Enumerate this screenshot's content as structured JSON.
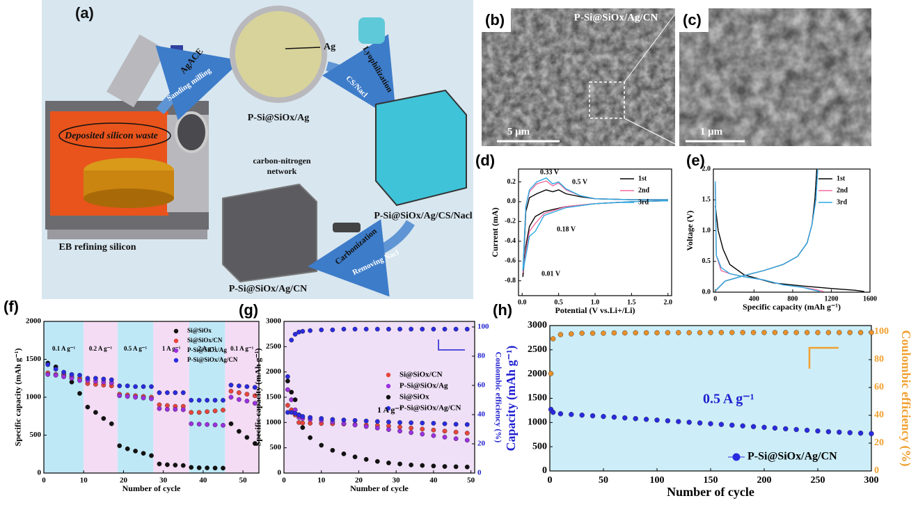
{
  "figure": {
    "labels": [
      "(a)",
      "(b)",
      "(c)",
      "(d)",
      "(e)",
      "(f)",
      "(g)",
      "(h)"
    ],
    "a": {
      "agace": "AgACE",
      "sanding": "Sanding milling",
      "ag": "Ag",
      "psi_ag": "P-Si@SiOx/Ag",
      "lyophilization": "Lyophilization",
      "cs_nacl": "CS/Nacl",
      "deposited": "Deposited silicon waste",
      "cn_network_1": "carbon-nitrogen",
      "cn_network_2": "network",
      "psi_cs": "P-Si@SiOx/Ag/CS/Nacl",
      "carbonization": "Carbonization",
      "removing": "Removing Nacl",
      "eb": "EB refining silicon",
      "psi_cn": "P-Si@SiOx/Ag/CN"
    },
    "b": {
      "title": "P-Si@SiOx/Ag/CN",
      "scale": "5 μm"
    },
    "c": {
      "scale": "1 μm"
    }
  },
  "chart_data": [
    {
      "type": "line",
      "xlabel": "Potential (V vs.Li+/Li)",
      "ylabel": "Current (mA)",
      "xlim": [
        -0.05,
        2.05
      ],
      "ylim": [
        -0.95,
        0.33
      ],
      "xticks": [
        {
          "value": 0,
          "label": "0.0"
        },
        0.5,
        {
          "value": 1,
          "label": "1.0"
        },
        1.5,
        {
          "value": 2,
          "label": "2.0"
        }
      ],
      "yticks": [
        -0.8,
        -0.6,
        -0.4,
        -0.2,
        {
          "value": 0,
          "label": "0.0"
        },
        0.2
      ],
      "legend": "upper right",
      "background": "#ffffff",
      "x": [
        2.0,
        1.5,
        1.0,
        0.6,
        0.3,
        0.18,
        0.1,
        0.05,
        0.01,
        0.05,
        0.1,
        0.2,
        0.33,
        0.42,
        0.5,
        0.6,
        0.8,
        1.0,
        1.5,
        2.0
      ],
      "series": [
        {
          "name": "1st",
          "color": "#000000",
          "values": [
            0.01,
            0.0,
            -0.02,
            -0.05,
            -0.1,
            -0.15,
            -0.25,
            -0.45,
            -0.76,
            -0.1,
            0.04,
            0.08,
            0.12,
            0.1,
            0.12,
            0.08,
            0.05,
            0.03,
            0.02,
            0.02
          ]
        },
        {
          "name": "2nd",
          "color": "#f06ca0",
          "values": [
            0.01,
            0.0,
            -0.02,
            -0.05,
            -0.12,
            -0.22,
            -0.3,
            -0.5,
            -0.72,
            -0.05,
            0.1,
            0.18,
            0.21,
            0.16,
            0.19,
            0.12,
            0.06,
            0.03,
            0.02,
            0.02
          ]
        },
        {
          "name": "3rd",
          "color": "#29a8e0",
          "values": [
            0.01,
            0.0,
            -0.02,
            -0.06,
            -0.14,
            -0.3,
            -0.35,
            -0.55,
            -0.7,
            -0.05,
            0.12,
            0.2,
            0.24,
            0.18,
            0.2,
            0.13,
            0.06,
            0.03,
            0.02,
            0.02
          ]
        }
      ],
      "annotations": [
        "0.33 V",
        "0.5 V",
        "0.18 V",
        "0.01 V"
      ]
    },
    {
      "type": "line",
      "xlabel": "Specific capacity (mAh g⁻¹)",
      "ylabel": "Voltage (V)",
      "xlim": [
        -20,
        1600
      ],
      "ylim": [
        0,
        2.0
      ],
      "xticks": [
        0,
        400,
        800,
        1200,
        1600
      ],
      "yticks": [
        {
          "value": 0,
          "label": "0.0"
        },
        0.5,
        {
          "value": 1,
          "label": "1.0"
        },
        1.5,
        {
          "value": 2,
          "label": "2.0"
        }
      ],
      "legend": "upper right",
      "background": "#ffffff",
      "series": [
        {
          "name": "1st",
          "color": "#000000",
          "x": [
            0,
            30,
            80,
            150,
            300,
            600,
            900,
            1200,
            1450,
            1540,
            null,
            0,
            100,
            300,
            500,
            700,
            850,
            950,
            1000,
            1030,
            1050
          ],
          "values": [
            1.4,
            1.0,
            0.7,
            0.45,
            0.28,
            0.15,
            0.1,
            0.06,
            0.03,
            0.01,
            null,
            0.02,
            0.18,
            0.27,
            0.35,
            0.45,
            0.58,
            0.8,
            1.1,
            1.5,
            2.0
          ]
        },
        {
          "name": "2nd",
          "color": "#f06ca0",
          "x": [
            0,
            10,
            60,
            150,
            300,
            500,
            700,
            900,
            1050,
            1120,
            null,
            0,
            100,
            300,
            500,
            700,
            850,
            950,
            1000,
            1040,
            1060
          ],
          "values": [
            1.75,
            0.6,
            0.35,
            0.3,
            0.25,
            0.2,
            0.12,
            0.08,
            0.04,
            0.01,
            null,
            0.02,
            0.18,
            0.27,
            0.35,
            0.45,
            0.58,
            0.8,
            1.1,
            1.5,
            2.0
          ]
        },
        {
          "name": "3rd",
          "color": "#29a8e0",
          "x": [
            0,
            10,
            60,
            150,
            300,
            500,
            700,
            900,
            1000,
            1080,
            null,
            0,
            100,
            300,
            500,
            700,
            850,
            950,
            1000,
            1040,
            1060
          ],
          "values": [
            1.8,
            0.6,
            0.4,
            0.3,
            0.25,
            0.2,
            0.12,
            0.08,
            0.04,
            0.01,
            null,
            0.02,
            0.18,
            0.27,
            0.35,
            0.45,
            0.58,
            0.8,
            1.1,
            1.5,
            2.0
          ]
        }
      ]
    },
    {
      "type": "line",
      "markers": true,
      "xlabel": "Number of cycle",
      "ylabel": "Specific capacity (mAh g⁻¹)",
      "xlim": [
        0,
        54
      ],
      "ylim": [
        0,
        2000
      ],
      "xticks": [
        0,
        10,
        20,
        30,
        40,
        50
      ],
      "yticks": [
        0,
        500,
        1000,
        1500,
        2000
      ],
      "legend": "upper right",
      "background": "#ffffff",
      "regions": [
        {
          "range": [
            0,
            10
          ],
          "label": "0.1 A g⁻¹",
          "color": "#bfe8f7"
        },
        {
          "range": [
            10,
            18.5
          ],
          "label": "0.2 A g⁻¹",
          "color": "#f4dcf4"
        },
        {
          "range": [
            18.5,
            27.5
          ],
          "label": "0.5 A g⁻¹",
          "color": "#bfe8f7"
        },
        {
          "range": [
            27.5,
            36.5
          ],
          "label": "1 A g⁻¹",
          "color": "#f4dcf4"
        },
        {
          "range": [
            36.5,
            45.5
          ],
          "label": "2 A g⁻¹",
          "color": "#bfe8f7"
        },
        {
          "range": [
            45.5,
            54
          ],
          "label": "0.1 A g⁻¹",
          "color": "#f4dcf4"
        }
      ],
      "x": [
        1,
        3,
        5,
        7,
        9,
        11,
        13,
        15,
        17,
        19,
        21,
        23,
        25,
        27,
        29,
        31,
        33,
        35,
        37,
        39,
        41,
        43,
        45,
        47,
        49,
        51,
        53
      ],
      "series": [
        {
          "name": "Si@SiOx",
          "color": "#111111",
          "values": [
            1450,
            1400,
            1300,
            1200,
            1050,
            870,
            800,
            720,
            650,
            360,
            320,
            290,
            260,
            230,
            120,
            110,
            105,
            100,
            75,
            70,
            68,
            66,
            65,
            650,
            550,
            470,
            390
          ]
        },
        {
          "name": "Si@SiOx/CN",
          "color": "#e8453c",
          "values": [
            1320,
            1300,
            1290,
            1270,
            1250,
            1180,
            1170,
            1160,
            1150,
            1040,
            1030,
            1020,
            1010,
            1000,
            900,
            890,
            880,
            880,
            800,
            800,
            810,
            820,
            830,
            1080,
            1060,
            1040,
            1020
          ]
        },
        {
          "name": "P-Si@SiOx/Ag",
          "color": "#9b30e0",
          "values": [
            1300,
            1290,
            1270,
            1250,
            1220,
            1220,
            1210,
            1200,
            1190,
            1020,
            1010,
            1000,
            990,
            980,
            850,
            840,
            840,
            835,
            650,
            645,
            640,
            635,
            630,
            1000,
            970,
            950,
            920
          ]
        },
        {
          "name": "P-Si@SiOx/Ag/CN",
          "color": "#2a2ae0",
          "values": [
            1430,
            1370,
            1330,
            1300,
            1290,
            1250,
            1250,
            1240,
            1230,
            1150,
            1150,
            1140,
            1140,
            1140,
            1060,
            1060,
            1060,
            1060,
            960,
            960,
            960,
            960,
            960,
            1160,
            1150,
            1140,
            1130
          ]
        }
      ]
    },
    {
      "type": "line",
      "markers": true,
      "xlabel": "Number of cycle",
      "ylabel": "Specific capacity (mAh g⁻¹)",
      "y2label": "Coulombic efficiency (%)",
      "y2label_color": "#1f1fd0",
      "xlim": [
        0,
        51
      ],
      "ylim": [
        0,
        3000
      ],
      "y2lim": [
        0,
        103.8
      ],
      "xticks": [
        0,
        10,
        20,
        30,
        40,
        50
      ],
      "yticks": [
        0,
        500,
        1000,
        1500,
        2000,
        2500,
        3000
      ],
      "y2ticks": [
        0,
        20,
        40,
        60,
        80,
        100
      ],
      "legend": "center right",
      "background": "#efe0f7",
      "x": [
        1,
        2,
        3,
        4,
        5,
        7,
        10,
        13,
        16,
        19,
        22,
        25,
        28,
        31,
        34,
        37,
        40,
        43,
        46,
        49
      ],
      "series": [
        {
          "name": "Si@SiOx/CN",
          "color": "#e8453c",
          "values": [
            1340,
            1250,
            1150,
            1000,
            990,
            985,
            980,
            975,
            970,
            960,
            950,
            940,
            930,
            910,
            890,
            870,
            850,
            830,
            810,
            790
          ]
        },
        {
          "name": "P-Si@SiOx/Ag",
          "color": "#9b30e0",
          "values": [
            1650,
            1450,
            1250,
            1100,
            1080,
            1060,
            1040,
            1010,
            980,
            950,
            920,
            890,
            860,
            830,
            800,
            770,
            740,
            710,
            680,
            650
          ]
        },
        {
          "name": "Si@SiOx",
          "color": "#111111",
          "values": [
            1820,
            1600,
            1450,
            1150,
            900,
            700,
            550,
            450,
            380,
            320,
            270,
            230,
            200,
            180,
            160,
            150,
            140,
            130,
            125,
            120
          ]
        },
        {
          "name": "P-Si@SiOx/Ag/CN",
          "color": "#2a2ae0",
          "values": [
            1200,
            1200,
            1180,
            1150,
            1120,
            1100,
            1080,
            1060,
            1050,
            1040,
            1030,
            1020,
            1010,
            1000,
            995,
            990,
            985,
            975,
            965,
            960
          ]
        },
        {
          "color": "#2a2ae0",
          "axis": "y2",
          "values": [
            66,
            91,
            95,
            96.5,
            97,
            97.5,
            98,
            98,
            98.5,
            98.5,
            98.5,
            98.5,
            98.5,
            98.5,
            98.5,
            98.5,
            98.5,
            98.5,
            98.5,
            98.5
          ]
        }
      ],
      "annotations": [
        "1 A g⁻¹"
      ]
    },
    {
      "type": "line",
      "markers": true,
      "xlabel": "Number of cycle",
      "ylabel": "Capacity (mAh g⁻¹)",
      "ylabel_color": "#1f1fd0",
      "y2label": "Coulombic efficiency (%)",
      "y2label_color": "#f0a030",
      "xlim": [
        0,
        300
      ],
      "ylim": [
        0,
        3000
      ],
      "y2lim": [
        0,
        104.5
      ],
      "xticks": [
        0,
        50,
        100,
        150,
        200,
        250,
        300
      ],
      "yticks": [
        0,
        500,
        1000,
        1500,
        2000,
        2500,
        3000
      ],
      "y2ticks": [
        0,
        20,
        40,
        60,
        80,
        100
      ],
      "legend": "lower right",
      "background": "#cdeef8",
      "x": [
        1,
        3,
        10,
        20,
        30,
        40,
        50,
        60,
        70,
        80,
        90,
        100,
        110,
        120,
        130,
        140,
        150,
        160,
        170,
        180,
        190,
        200,
        210,
        220,
        230,
        240,
        250,
        260,
        270,
        280,
        290,
        300
      ],
      "series": [
        {
          "name": "P-Si@SiOx/Ag/CN",
          "color": "#2a2ae0",
          "values": [
            1270,
            1210,
            1180,
            1166,
            1152,
            1138,
            1124,
            1110,
            1095,
            1080,
            1065,
            1050,
            1035,
            1020,
            1005,
            990,
            975,
            960,
            945,
            930,
            915,
            900,
            885,
            870,
            855,
            840,
            825,
            810,
            800,
            790,
            780,
            770
          ]
        },
        {
          "color": "#e8902a",
          "axis": "y2",
          "values": [
            70,
            95,
            98,
            98.5,
            99,
            99,
            99,
            99.2,
            99.2,
            99.3,
            99.3,
            99.3,
            99.4,
            99.4,
            99.4,
            99.4,
            99.5,
            99.5,
            99.5,
            99.5,
            99.5,
            99.5,
            99.5,
            99.5,
            99.5,
            99.5,
            99.5,
            99.5,
            99.5,
            99.5,
            99.5,
            99.5
          ]
        }
      ],
      "annotations": [
        "0.5 A g⁻¹"
      ]
    }
  ]
}
